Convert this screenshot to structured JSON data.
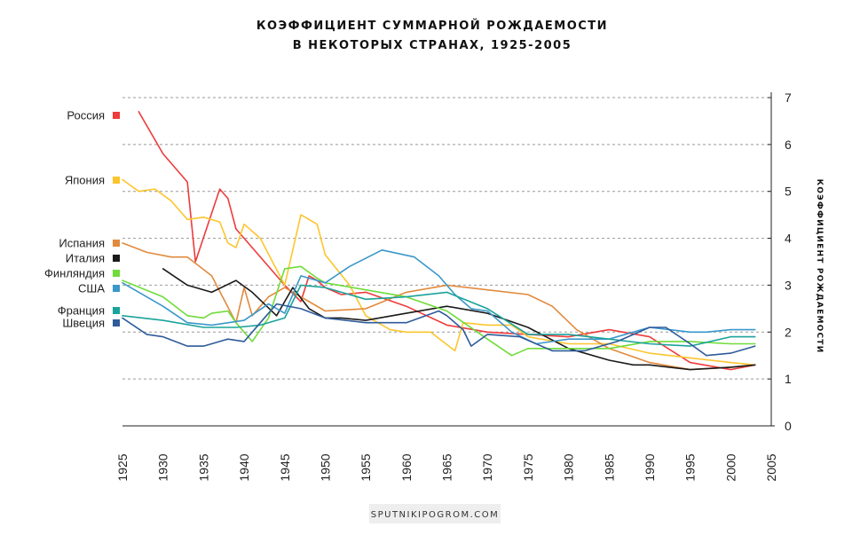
{
  "chart_data": {
    "type": "line",
    "title_lines": [
      "КОЭФФИЦИЕНТ СУММАРНОЙ РОЖДАЕМОСТИ",
      "В НЕКОТОРЫХ СТРАНАХ, 1925-2005"
    ],
    "ylabel": "КОЭФФИЦИЕНТ РОЖДАЕМОСТИ",
    "xlabel": "",
    "xlim": [
      1925,
      2005
    ],
    "ylim": [
      0,
      7
    ],
    "x_ticks": [
      "1925",
      "1930",
      "1935",
      "1940",
      "1945",
      "1950",
      "1955",
      "1960",
      "1965",
      "1970",
      "1975",
      "1980",
      "1985",
      "1990",
      "1995",
      "2000",
      "2005"
    ],
    "y_ticks": [
      "0",
      "1",
      "2",
      "3",
      "4",
      "5",
      "6",
      "7"
    ],
    "grid": "horizontal dashed",
    "legend_position": "left",
    "series": [
      {
        "name": "Россия",
        "color": "#ee3b3b",
        "x": [
          1927,
          1930,
          1933,
          1934,
          1937,
          1938,
          1939,
          1945,
          1947,
          1948,
          1949,
          1950,
          1952,
          1955,
          1960,
          1965,
          1970,
          1975,
          1980,
          1985,
          1990,
          1995,
          2000,
          2003
        ],
        "y": [
          6.7,
          5.8,
          5.2,
          3.5,
          5.05,
          4.85,
          4.2,
          3.0,
          2.65,
          3.2,
          3.1,
          2.95,
          2.8,
          2.85,
          2.55,
          2.15,
          2.0,
          1.95,
          1.9,
          2.05,
          1.9,
          1.35,
          1.2,
          1.3
        ]
      },
      {
        "name": "Япония",
        "color": "#fdc52e",
        "x": [
          1925,
          1927,
          1929,
          1931,
          1933,
          1935,
          1937,
          1938,
          1939,
          1940,
          1942,
          1945,
          1947,
          1949,
          1950,
          1953,
          1955,
          1958,
          1960,
          1963,
          1966,
          1967,
          1970,
          1973,
          1975,
          1980,
          1985,
          1990,
          1995,
          2000,
          2003
        ],
        "y": [
          5.25,
          5.0,
          5.05,
          4.8,
          4.4,
          4.45,
          4.35,
          3.9,
          3.8,
          4.3,
          4.0,
          3.0,
          4.5,
          4.3,
          3.65,
          3.0,
          2.35,
          2.05,
          2.0,
          2.0,
          1.6,
          2.2,
          2.15,
          2.15,
          1.9,
          1.75,
          1.75,
          1.55,
          1.45,
          1.35,
          1.3
        ]
      },
      {
        "name": "Испания",
        "color": "#e18a3d",
        "x": [
          1925,
          1928,
          1931,
          1933,
          1936,
          1939,
          1940,
          1941,
          1943,
          1945,
          1950,
          1955,
          1960,
          1965,
          1970,
          1975,
          1978,
          1981,
          1985,
          1990,
          1995,
          2000,
          2003
        ],
        "y": [
          3.9,
          3.7,
          3.6,
          3.6,
          3.2,
          2.2,
          2.95,
          2.35,
          2.75,
          2.95,
          2.45,
          2.5,
          2.85,
          3.0,
          2.9,
          2.8,
          2.55,
          2.05,
          1.65,
          1.35,
          1.2,
          1.25,
          1.3
        ]
      },
      {
        "name": "Италия",
        "color": "#1a1a1a",
        "x": [
          1930,
          1933,
          1936,
          1939,
          1941,
          1944,
          1946,
          1948,
          1950,
          1952,
          1955,
          1960,
          1965,
          1970,
          1975,
          1980,
          1985,
          1988,
          1990,
          1995,
          2000,
          2003
        ],
        "y": [
          3.35,
          3.0,
          2.85,
          3.1,
          2.85,
          2.35,
          2.95,
          2.5,
          2.3,
          2.3,
          2.25,
          2.4,
          2.55,
          2.4,
          2.1,
          1.65,
          1.4,
          1.3,
          1.3,
          1.2,
          1.25,
          1.3
        ]
      },
      {
        "name": "Финляндия",
        "color": "#6fdc3a",
        "x": [
          1925,
          1930,
          1933,
          1935,
          1936,
          1938,
          1939,
          1941,
          1943,
          1945,
          1947,
          1949,
          1950,
          1955,
          1960,
          1965,
          1970,
          1973,
          1975,
          1980,
          1985,
          1990,
          1995,
          2000,
          2003
        ],
        "y": [
          3.1,
          2.75,
          2.35,
          2.3,
          2.4,
          2.45,
          2.2,
          1.8,
          2.3,
          3.35,
          3.4,
          3.15,
          3.05,
          2.9,
          2.75,
          2.45,
          1.85,
          1.5,
          1.65,
          1.65,
          1.65,
          1.8,
          1.8,
          1.75,
          1.75
        ]
      },
      {
        "name": "США",
        "color": "#3a97cb",
        "x": [
          1925,
          1930,
          1933,
          1936,
          1940,
          1943,
          1945,
          1947,
          1950,
          1953,
          1957,
          1961,
          1964,
          1966,
          1968,
          1970,
          1973,
          1976,
          1980,
          1985,
          1990,
          1995,
          1997,
          2000,
          2003
        ],
        "y": [
          3.05,
          2.55,
          2.2,
          2.15,
          2.25,
          2.6,
          2.4,
          3.2,
          3.05,
          3.4,
          3.75,
          3.6,
          3.2,
          2.8,
          2.5,
          2.45,
          2.0,
          1.75,
          1.85,
          1.85,
          2.1,
          2.0,
          2.0,
          2.05,
          2.05
        ]
      },
      {
        "name": "Франция",
        "color": "#1aa39b",
        "x": [
          1925,
          1930,
          1935,
          1939,
          1942,
          1945,
          1947,
          1950,
          1955,
          1960,
          1965,
          1970,
          1975,
          1980,
          1985,
          1990,
          1995,
          2000,
          2003
        ],
        "y": [
          2.35,
          2.25,
          2.1,
          2.1,
          2.15,
          2.3,
          3.0,
          2.95,
          2.7,
          2.75,
          2.85,
          2.5,
          1.95,
          1.95,
          1.85,
          1.75,
          1.7,
          1.9,
          1.9
        ]
      },
      {
        "name": "Швеция",
        "color": "#2f5b9a",
        "x": [
          1925,
          1928,
          1930,
          1933,
          1935,
          1938,
          1940,
          1942,
          1944,
          1947,
          1950,
          1955,
          1960,
          1964,
          1965,
          1967,
          1968,
          1970,
          1974,
          1978,
          1982,
          1986,
          1990,
          1992,
          1995,
          1997,
          2000,
          2003
        ],
        "y": [
          2.3,
          1.95,
          1.9,
          1.7,
          1.7,
          1.85,
          1.8,
          2.2,
          2.6,
          2.5,
          2.3,
          2.2,
          2.2,
          2.45,
          2.35,
          2.05,
          1.7,
          1.95,
          1.9,
          1.6,
          1.6,
          1.8,
          2.1,
          2.1,
          1.75,
          1.5,
          1.55,
          1.7
        ]
      }
    ]
  },
  "footer": {
    "source": "SPUTNIKIPOGROM.COM"
  }
}
